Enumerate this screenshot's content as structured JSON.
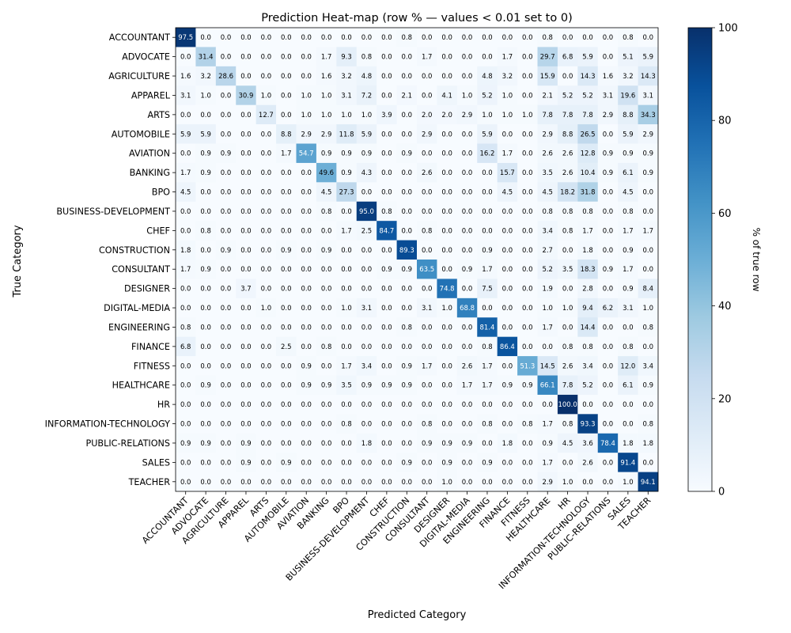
{
  "chart_data": {
    "type": "heatmap",
    "title": "Prediction Heat-map (row % — values < 0.01 set to 0)",
    "xlabel": "Predicted Category",
    "ylabel": "True Category",
    "categories": [
      "ACCOUNTANT",
      "ADVOCATE",
      "AGRICULTURE",
      "APPAREL",
      "ARTS",
      "AUTOMOBILE",
      "AVIATION",
      "BANKING",
      "BPO",
      "BUSINESS-DEVELOPMENT",
      "CHEF",
      "CONSTRUCTION",
      "CONSULTANT",
      "DESIGNER",
      "DIGITAL-MEDIA",
      "ENGINEERING",
      "FINANCE",
      "FITNESS",
      "HEALTHCARE",
      "HR",
      "INFORMATION-TECHNOLOGY",
      "PUBLIC-RELATIONS",
      "SALES",
      "TEACHER"
    ],
    "values": [
      [
        97.5,
        0.0,
        0.0,
        0.0,
        0.0,
        0.0,
        0.0,
        0.0,
        0.0,
        0.0,
        0.0,
        0.8,
        0.0,
        0.0,
        0.0,
        0.0,
        0.0,
        0.0,
        0.8,
        0.0,
        0.0,
        0.0,
        0.8,
        0.0
      ],
      [
        0.0,
        31.4,
        0.0,
        0.0,
        0.0,
        0.0,
        0.0,
        1.7,
        9.3,
        0.8,
        0.0,
        0.0,
        1.7,
        0.0,
        0.0,
        0.0,
        1.7,
        0.0,
        29.7,
        6.8,
        5.9,
        0.0,
        5.1,
        5.9
      ],
      [
        1.6,
        3.2,
        28.6,
        0.0,
        0.0,
        0.0,
        0.0,
        1.6,
        3.2,
        4.8,
        0.0,
        0.0,
        0.0,
        0.0,
        0.0,
        4.8,
        3.2,
        0.0,
        15.9,
        0.0,
        14.3,
        1.6,
        3.2,
        14.3
      ],
      [
        3.1,
        1.0,
        0.0,
        30.9,
        1.0,
        0.0,
        1.0,
        1.0,
        3.1,
        7.2,
        0.0,
        2.1,
        0.0,
        4.1,
        1.0,
        5.2,
        1.0,
        0.0,
        2.1,
        5.2,
        5.2,
        3.1,
        19.6,
        3.1
      ],
      [
        0.0,
        0.0,
        0.0,
        0.0,
        12.7,
        0.0,
        1.0,
        1.0,
        1.0,
        1.0,
        3.9,
        0.0,
        2.0,
        2.0,
        2.9,
        1.0,
        1.0,
        1.0,
        7.8,
        7.8,
        7.8,
        2.9,
        8.8,
        34.3
      ],
      [
        5.9,
        5.9,
        0.0,
        0.0,
        0.0,
        8.8,
        2.9,
        2.9,
        11.8,
        5.9,
        0.0,
        0.0,
        2.9,
        0.0,
        0.0,
        5.9,
        0.0,
        0.0,
        2.9,
        8.8,
        26.5,
        0.0,
        5.9,
        2.9
      ],
      [
        0.0,
        0.9,
        0.9,
        0.0,
        0.0,
        1.7,
        54.7,
        0.9,
        0.9,
        0.9,
        0.0,
        0.9,
        0.0,
        0.0,
        0.0,
        16.2,
        1.7,
        0.0,
        2.6,
        2.6,
        12.8,
        0.9,
        0.9,
        0.9
      ],
      [
        1.7,
        0.9,
        0.0,
        0.0,
        0.0,
        0.0,
        0.0,
        49.6,
        0.9,
        4.3,
        0.0,
        0.0,
        2.6,
        0.0,
        0.0,
        0.0,
        15.7,
        0.0,
        3.5,
        2.6,
        10.4,
        0.9,
        6.1,
        0.9
      ],
      [
        4.5,
        0.0,
        0.0,
        0.0,
        0.0,
        0.0,
        0.0,
        4.5,
        27.3,
        0.0,
        0.0,
        0.0,
        0.0,
        0.0,
        0.0,
        0.0,
        4.5,
        0.0,
        4.5,
        18.2,
        31.8,
        0.0,
        4.5,
        0.0
      ],
      [
        0.0,
        0.0,
        0.0,
        0.0,
        0.0,
        0.0,
        0.0,
        0.8,
        0.0,
        95.0,
        0.8,
        0.0,
        0.0,
        0.0,
        0.0,
        0.0,
        0.0,
        0.0,
        0.8,
        0.8,
        0.8,
        0.0,
        0.8,
        0.0
      ],
      [
        0.0,
        0.8,
        0.0,
        0.0,
        0.0,
        0.0,
        0.0,
        0.0,
        1.7,
        2.5,
        84.7,
        0.0,
        0.8,
        0.0,
        0.0,
        0.0,
        0.0,
        0.0,
        3.4,
        0.8,
        1.7,
        0.0,
        1.7,
        1.7
      ],
      [
        1.8,
        0.0,
        0.9,
        0.0,
        0.0,
        0.9,
        0.0,
        0.9,
        0.0,
        0.0,
        0.0,
        89.3,
        0.0,
        0.0,
        0.0,
        0.9,
        0.0,
        0.0,
        2.7,
        0.0,
        1.8,
        0.0,
        0.9,
        0.0
      ],
      [
        1.7,
        0.9,
        0.0,
        0.0,
        0.0,
        0.0,
        0.0,
        0.0,
        0.0,
        0.0,
        0.9,
        0.9,
        63.5,
        0.0,
        0.9,
        1.7,
        0.0,
        0.0,
        5.2,
        3.5,
        18.3,
        0.9,
        1.7,
        0.0
      ],
      [
        0.0,
        0.0,
        0.0,
        3.7,
        0.0,
        0.0,
        0.0,
        0.0,
        0.0,
        0.0,
        0.0,
        0.0,
        0.0,
        74.8,
        0.0,
        7.5,
        0.0,
        0.0,
        1.9,
        0.0,
        2.8,
        0.0,
        0.9,
        8.4
      ],
      [
        0.0,
        0.0,
        0.0,
        0.0,
        1.0,
        0.0,
        0.0,
        0.0,
        1.0,
        3.1,
        0.0,
        0.0,
        3.1,
        1.0,
        68.8,
        0.0,
        0.0,
        0.0,
        1.0,
        1.0,
        9.4,
        6.2,
        3.1,
        1.0
      ],
      [
        0.8,
        0.0,
        0.0,
        0.0,
        0.0,
        0.0,
        0.0,
        0.0,
        0.0,
        0.0,
        0.0,
        0.8,
        0.0,
        0.0,
        0.0,
        81.4,
        0.0,
        0.0,
        1.7,
        0.0,
        14.4,
        0.0,
        0.0,
        0.8
      ],
      [
        6.8,
        0.0,
        0.0,
        0.0,
        0.0,
        2.5,
        0.0,
        0.8,
        0.0,
        0.0,
        0.0,
        0.0,
        0.0,
        0.0,
        0.0,
        0.8,
        86.4,
        0.0,
        0.0,
        0.8,
        0.8,
        0.0,
        0.8,
        0.0
      ],
      [
        0.0,
        0.0,
        0.0,
        0.0,
        0.0,
        0.0,
        0.9,
        0.0,
        1.7,
        3.4,
        0.0,
        0.9,
        1.7,
        0.0,
        2.6,
        1.7,
        0.0,
        51.3,
        14.5,
        2.6,
        3.4,
        0.0,
        12.0,
        3.4
      ],
      [
        0.0,
        0.9,
        0.0,
        0.0,
        0.0,
        0.0,
        0.9,
        0.9,
        3.5,
        0.9,
        0.9,
        0.9,
        0.0,
        0.0,
        1.7,
        1.7,
        0.9,
        0.9,
        66.1,
        7.8,
        5.2,
        0.0,
        6.1,
        0.9
      ],
      [
        0.0,
        0.0,
        0.0,
        0.0,
        0.0,
        0.0,
        0.0,
        0.0,
        0.0,
        0.0,
        0.0,
        0.0,
        0.0,
        0.0,
        0.0,
        0.0,
        0.0,
        0.0,
        0.0,
        100.0,
        0.0,
        0.0,
        0.0,
        0.0
      ],
      [
        0.0,
        0.0,
        0.0,
        0.0,
        0.0,
        0.0,
        0.0,
        0.0,
        0.8,
        0.0,
        0.0,
        0.0,
        0.8,
        0.0,
        0.0,
        0.8,
        0.0,
        0.8,
        1.7,
        0.8,
        93.3,
        0.0,
        0.0,
        0.8
      ],
      [
        0.9,
        0.9,
        0.0,
        0.9,
        0.0,
        0.0,
        0.0,
        0.0,
        0.0,
        1.8,
        0.0,
        0.0,
        0.9,
        0.9,
        0.9,
        0.0,
        1.8,
        0.0,
        0.9,
        4.5,
        3.6,
        78.4,
        1.8,
        1.8
      ],
      [
        0.0,
        0.0,
        0.0,
        0.9,
        0.0,
        0.9,
        0.0,
        0.0,
        0.0,
        0.0,
        0.0,
        0.9,
        0.0,
        0.9,
        0.0,
        0.9,
        0.0,
        0.0,
        1.7,
        0.0,
        2.6,
        0.0,
        91.4,
        0.0
      ],
      [
        0.0,
        0.0,
        0.0,
        0.0,
        0.0,
        0.0,
        0.0,
        0.0,
        0.0,
        0.0,
        0.0,
        0.0,
        0.0,
        1.0,
        0.0,
        0.0,
        0.0,
        0.0,
        2.9,
        1.0,
        0.0,
        0.0,
        1.0,
        94.1
      ]
    ],
    "colorbar": {
      "label": "% of true row",
      "range": [
        0,
        100
      ],
      "ticks": [
        0,
        20,
        40,
        60,
        80,
        100
      ]
    },
    "colormap": "Blues",
    "colors": {
      "low": "#f7fbff",
      "high": "#08306b"
    }
  }
}
